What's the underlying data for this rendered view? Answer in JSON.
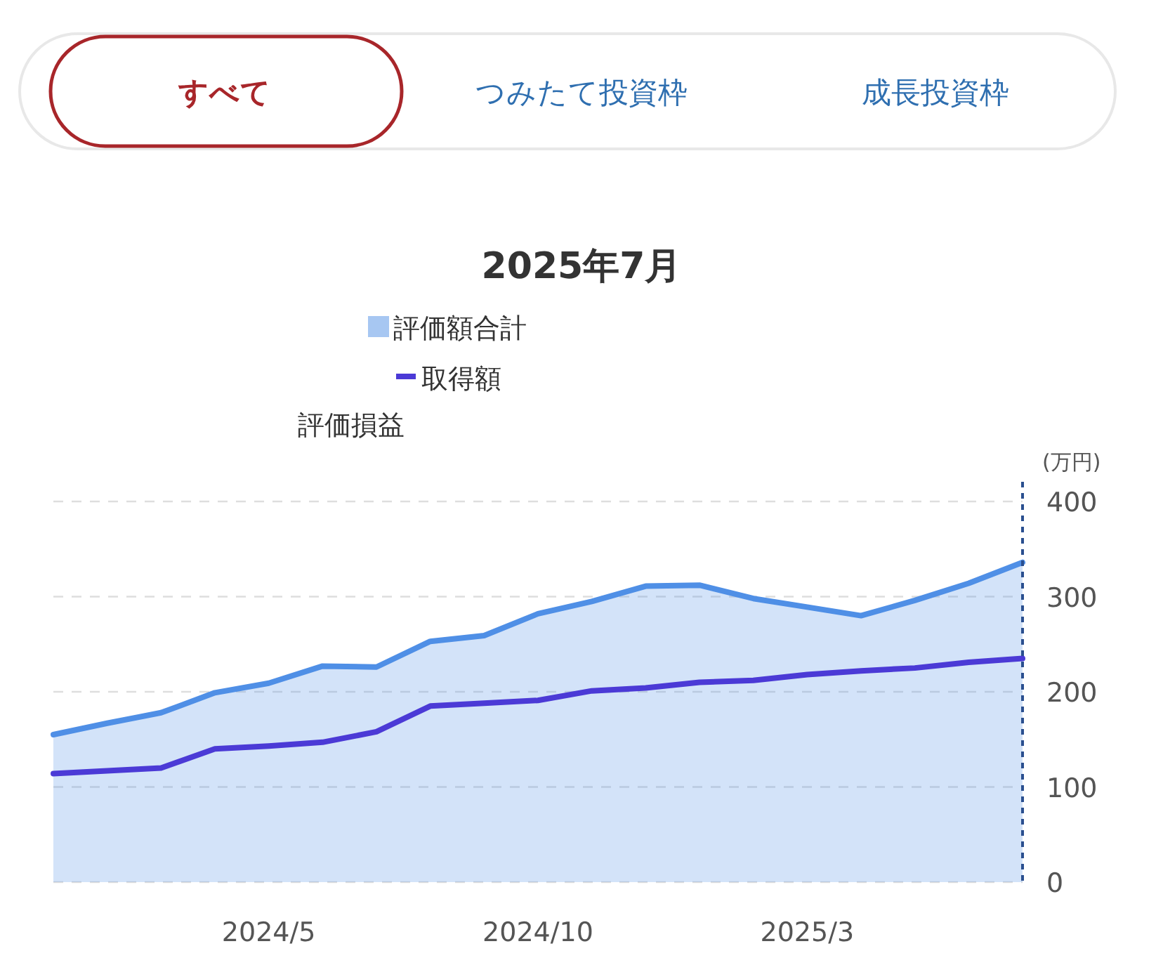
{
  "chart_data": {
    "type": "line",
    "title": "2025年7月",
    "ylabel": "(万円)",
    "annotations": [
      "すべて",
      "つみたて投資枠",
      "成長投資枠",
      "評価損益"
    ],
    "x": [
      "2024-01",
      "2024-02",
      "2024-03",
      "2024-04",
      "2024-05",
      "2024-06",
      "2024-07",
      "2024-08",
      "2024-09",
      "2024-10",
      "2024-11",
      "2024-12",
      "2025-01",
      "2025-02",
      "2025-03",
      "2025-04",
      "2025-05",
      "2025-06",
      "2025-07"
    ],
    "series": [
      {
        "name": "評価額合計",
        "type": "area",
        "color": "#4f8fe6",
        "values": [
          155,
          167,
          178,
          199,
          209,
          227,
          226,
          253,
          259,
          282,
          295,
          311,
          312,
          298,
          289,
          280,
          296,
          314,
          336
        ]
      },
      {
        "name": "取得額",
        "type": "line",
        "color": "#4b3ad6",
        "values": [
          114,
          117,
          120,
          140,
          143,
          147,
          158,
          185,
          188,
          191,
          201,
          204,
          210,
          212,
          218,
          222,
          225,
          231,
          235
        ]
      }
    ],
    "xlim": [
      "2024-01",
      "2025-07"
    ],
    "xticks": [
      {
        "value": "2024-05",
        "label": "2024/5"
      },
      {
        "value": "2024-10",
        "label": "2024/10"
      },
      {
        "value": "2025-03",
        "label": "2025/3"
      }
    ],
    "ylim": [
      0,
      400
    ],
    "yticks": [
      0,
      100,
      200,
      300,
      400
    ],
    "grid": "y",
    "legend": "top",
    "ref_lines": [
      {
        "axis": "x",
        "value": "2025-07",
        "color": "#2a4f8f",
        "line_style": "dashed"
      }
    ]
  }
}
